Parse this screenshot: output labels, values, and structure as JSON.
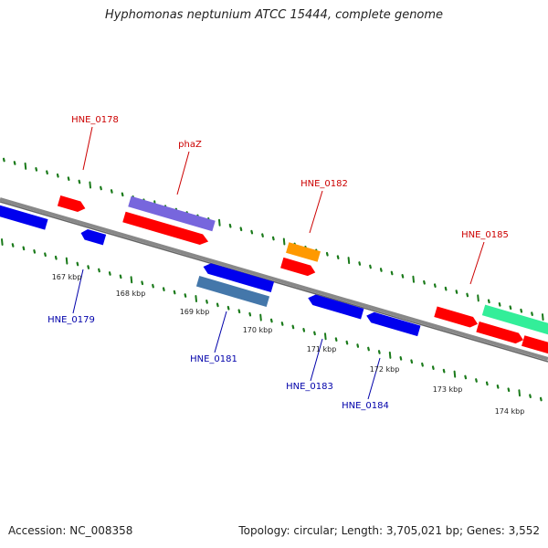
{
  "title": "Hyphomonas neptunium ATCC 15444, complete genome",
  "footer": {
    "accession": "Accession: NC_008358",
    "topology": "Topology: circular; Length: 3,705,021 bp; Genes: 3,552"
  },
  "scale_labels": [
    "167 kbp",
    "168 kbp",
    "169 kbp",
    "170 kbp",
    "171 kbp",
    "172 kbp",
    "173 kbp",
    "174 kbp"
  ],
  "gene_labels": [
    {
      "text": "HNE_0178",
      "strand": "top"
    },
    {
      "text": "phaZ",
      "strand": "top"
    },
    {
      "text": "HNE_0182",
      "strand": "top"
    },
    {
      "text": "HNE_0185",
      "strand": "top"
    },
    {
      "text": "HNE_0179",
      "strand": "bottom"
    },
    {
      "text": "HNE_0181",
      "strand": "bottom"
    },
    {
      "text": "HNE_0183",
      "strand": "bottom"
    },
    {
      "text": "HNE_0184",
      "strand": "bottom"
    }
  ],
  "colors": {
    "forward_label": "#cc0000",
    "reverse_label": "#0000aa",
    "backbone": "#888888",
    "tick": "#1a7a1a",
    "red": "#ff0000",
    "blue": "#0000ee",
    "purple": "#7766dd",
    "steelblue": "#4477aa",
    "orange": "#ff9900",
    "green": "#33ee99"
  }
}
